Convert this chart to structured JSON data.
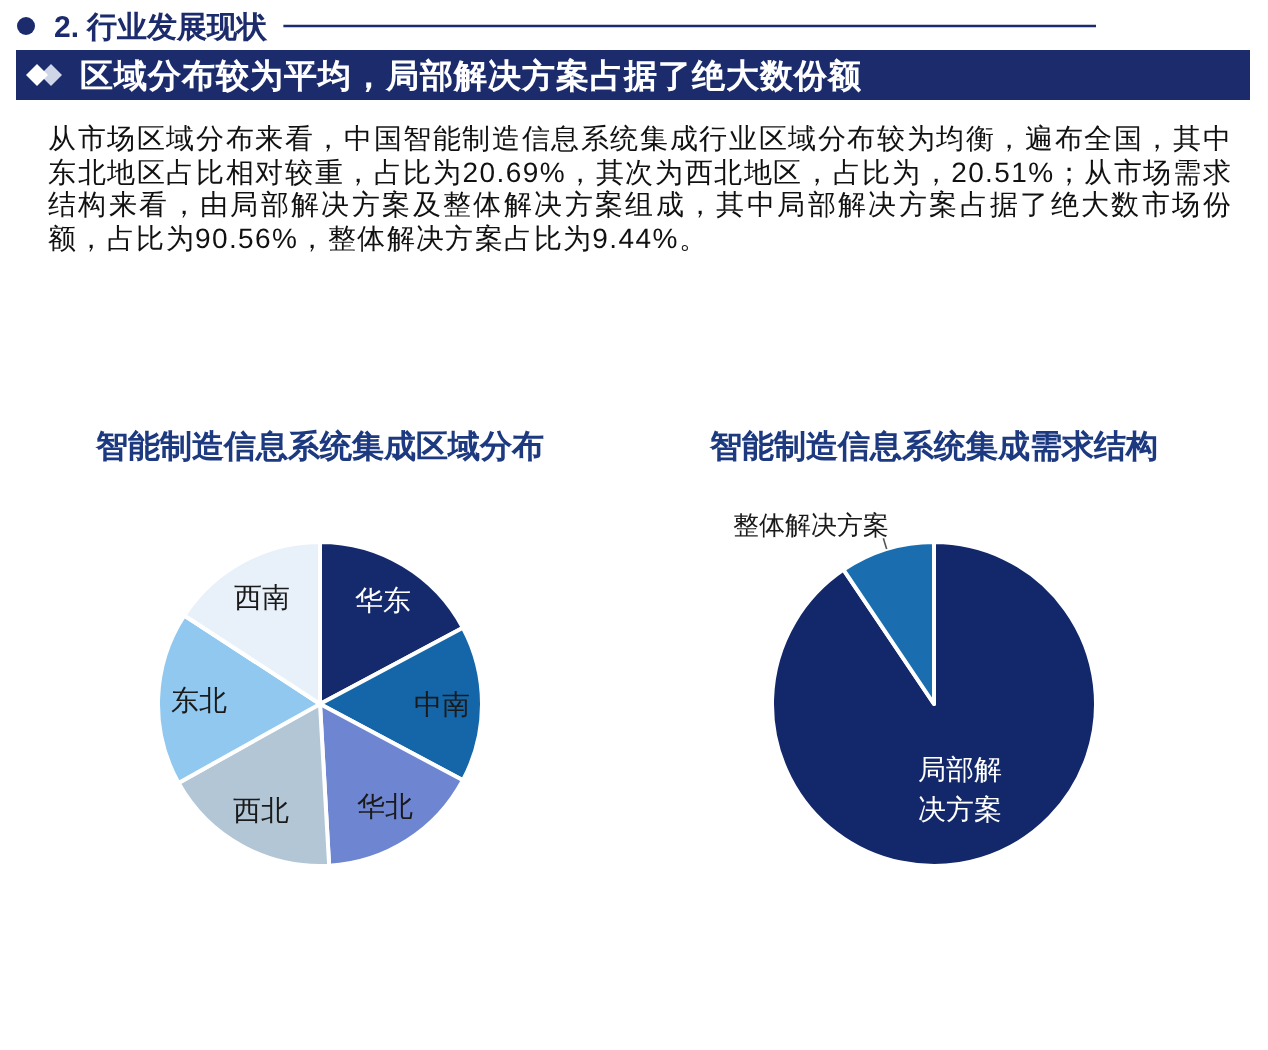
{
  "chart_data": [
    {
      "type": "other",
      "title": "2. 行业发展现状",
      "subtitle": "区域分布较为平均，局部解决方案占据了绝大数份额",
      "annotations": [
        "从市场区域分布来看，中国智能制造信息系统集成行业区域分布较为均衡，遍布全国，其中东北地区占比相对较重，占比为20.69%，其次为西北地区，占比为，20.51%；从市场需求结构来看，由局部解决方案及整体解决方案组成，其中局部解决方案占据了绝大数市场份额，占比为90.56%，整体解决方案占比为9.44%。"
      ]
    },
    {
      "type": "pie",
      "title": "智能制造信息系统集成区域分布",
      "categories": [
        "华东",
        "中南",
        "华北",
        "西北",
        "东北",
        "西南"
      ],
      "values": [
        17.2,
        15.6,
        16.3,
        17.8,
        17.3,
        15.8
      ],
      "colors": [
        "#142a6c",
        "#1566a8",
        "#6e86d2",
        "#b2c6d6",
        "#90c8f0",
        "#e8f1fa"
      ]
    },
    {
      "type": "pie",
      "title": "智能制造信息系统集成需求结构",
      "categories": [
        "局部解决方案",
        "整体解决方案"
      ],
      "values": [
        90.56,
        9.44
      ],
      "colors": [
        "#13286b",
        "#1a6eb0"
      ]
    }
  ]
}
